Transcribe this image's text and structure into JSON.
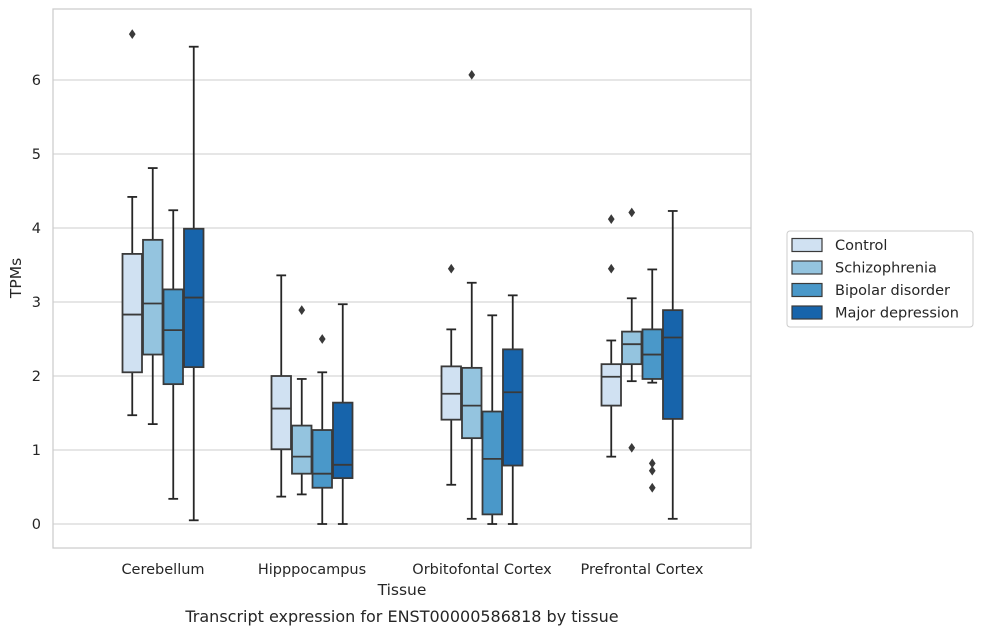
{
  "chart_data": {
    "type": "boxplot",
    "caption": "Transcript expression for ENST00000586818 by tissue",
    "xlabel": "Tissue",
    "ylabel": "TPMs",
    "ylim": [
      -0.3,
      6.95
    ],
    "yticks": [
      0,
      1,
      2,
      3,
      4,
      5,
      6
    ],
    "grid": "horizontal",
    "legend_position": "right",
    "categories": [
      "Cerebellum",
      "Hipppocampus",
      "Orbitofontal Cortex",
      "Prefrontal Cortex"
    ],
    "series": [
      {
        "name": "Control",
        "color": "#d0e1f2",
        "boxes": [
          {
            "whislo": 1.47,
            "q1": 2.05,
            "med": 2.83,
            "q3": 3.65,
            "whishi": 4.42,
            "fliers": [
              6.62
            ]
          },
          {
            "whislo": 0.37,
            "q1": 1.01,
            "med": 1.56,
            "q3": 2.0,
            "whishi": 3.36,
            "fliers": []
          },
          {
            "whislo": 0.53,
            "q1": 1.41,
            "med": 1.76,
            "q3": 2.13,
            "whishi": 2.63,
            "fliers": [
              3.45
            ]
          },
          {
            "whislo": 0.91,
            "q1": 1.6,
            "med": 1.99,
            "q3": 2.16,
            "whishi": 2.48,
            "fliers": [
              4.12,
              3.45
            ]
          }
        ]
      },
      {
        "name": "Schizophrenia",
        "color": "#94c4df",
        "boxes": [
          {
            "whislo": 1.35,
            "q1": 2.29,
            "med": 2.98,
            "q3": 3.84,
            "whishi": 4.81,
            "fliers": []
          },
          {
            "whislo": 0.4,
            "q1": 0.68,
            "med": 0.91,
            "q3": 1.33,
            "whishi": 1.96,
            "fliers": [
              2.89
            ]
          },
          {
            "whislo": 0.07,
            "q1": 1.16,
            "med": 1.6,
            "q3": 2.11,
            "whishi": 3.26,
            "fliers": [
              6.07
            ]
          },
          {
            "whislo": 1.93,
            "q1": 2.16,
            "med": 2.43,
            "q3": 2.6,
            "whishi": 3.05,
            "fliers": [
              4.21,
              1.03
            ]
          }
        ]
      },
      {
        "name": "Bipolar disorder",
        "color": "#4a98c9",
        "boxes": [
          {
            "whislo": 0.34,
            "q1": 1.89,
            "med": 2.62,
            "q3": 3.17,
            "whishi": 4.24,
            "fliers": []
          },
          {
            "whislo": 0.0,
            "q1": 0.49,
            "med": 0.68,
            "q3": 1.27,
            "whishi": 2.05,
            "fliers": [
              2.5
            ]
          },
          {
            "whislo": 0.0,
            "q1": 0.13,
            "med": 0.88,
            "q3": 1.52,
            "whishi": 2.82,
            "fliers": []
          },
          {
            "whislo": 1.91,
            "q1": 1.96,
            "med": 2.29,
            "q3": 2.63,
            "whishi": 3.44,
            "fliers": [
              0.82,
              0.72,
              0.49
            ]
          }
        ]
      },
      {
        "name": "Major depression",
        "color": "#1764ab",
        "boxes": [
          {
            "whislo": 0.05,
            "q1": 2.12,
            "med": 3.06,
            "q3": 3.99,
            "whishi": 6.45,
            "fliers": []
          },
          {
            "whislo": 0.0,
            "q1": 0.62,
            "med": 0.8,
            "q3": 1.64,
            "whishi": 2.97,
            "fliers": []
          },
          {
            "whislo": 0.0,
            "q1": 0.79,
            "med": 1.78,
            "q3": 2.36,
            "whishi": 3.09,
            "fliers": []
          },
          {
            "whislo": 0.07,
            "q1": 1.42,
            "med": 2.52,
            "q3": 2.89,
            "whishi": 4.23,
            "fliers": []
          }
        ]
      }
    ]
  }
}
